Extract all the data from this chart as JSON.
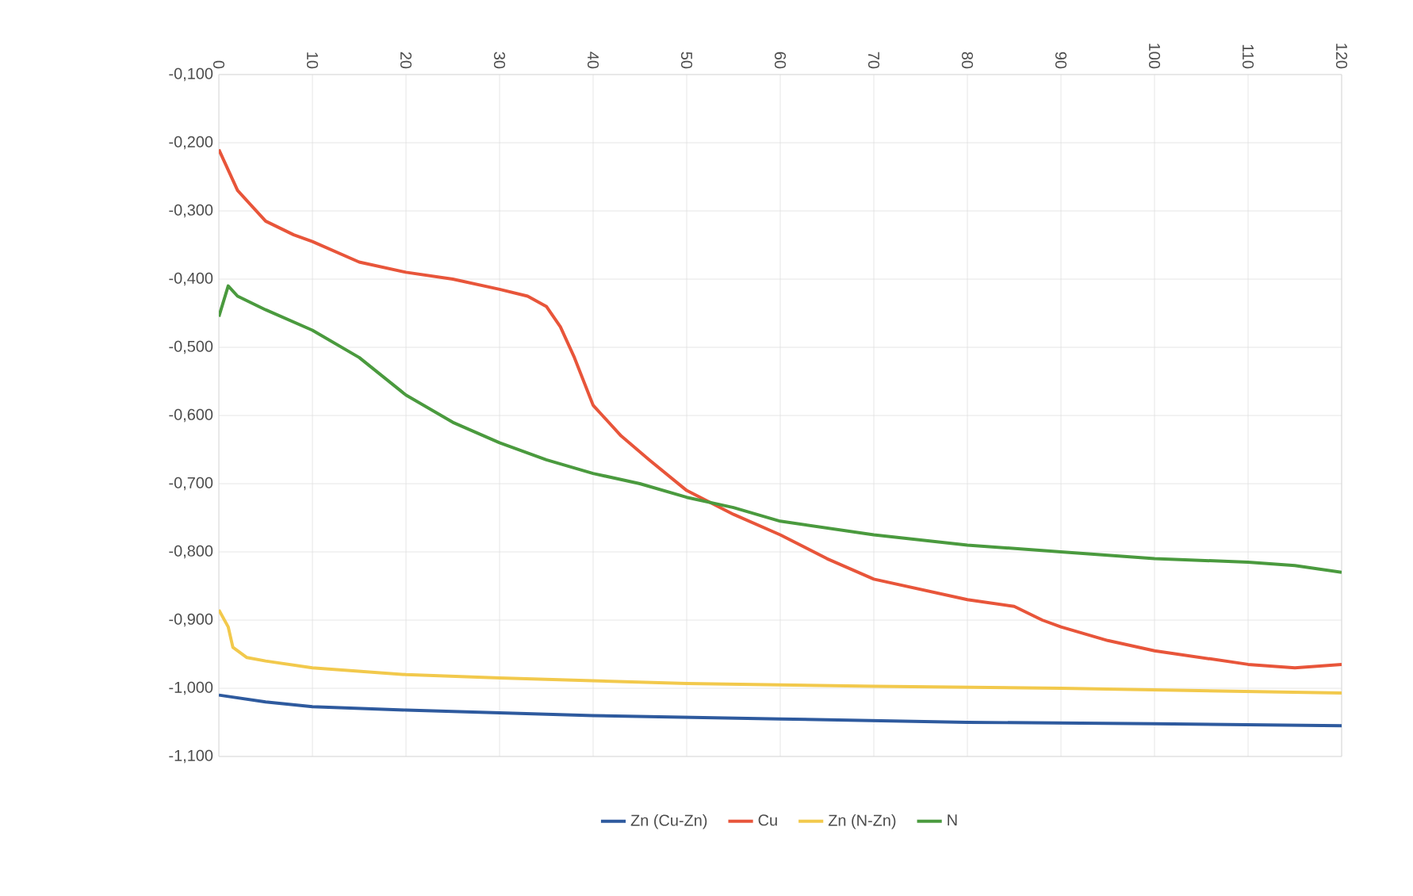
{
  "chart_data": {
    "type": "line",
    "grid": true,
    "legend": "bottom",
    "line_style": "solid",
    "marker": "none",
    "xlim": [
      0,
      120
    ],
    "xticks": [
      0,
      10,
      20,
      30,
      40,
      50,
      60,
      70,
      80,
      90,
      100,
      110,
      120
    ],
    "ylim": [
      -1.1,
      -0.1
    ],
    "yticks": [
      {
        "value": -0.1,
        "label": "-0,100"
      },
      {
        "value": -0.2,
        "label": "-0,200"
      },
      {
        "value": -0.3,
        "label": "-0,300"
      },
      {
        "value": -0.4,
        "label": "-0,400"
      },
      {
        "value": -0.5,
        "label": "-0,500"
      },
      {
        "value": -0.6,
        "label": "-0,600"
      },
      {
        "value": -0.7,
        "label": "-0,700"
      },
      {
        "value": -0.8,
        "label": "-0,800"
      },
      {
        "value": -0.9,
        "label": "-0,900"
      },
      {
        "value": -1.0,
        "label": "-1,000"
      },
      {
        "value": -1.1,
        "label": "-1,100"
      }
    ],
    "series": [
      {
        "name": "Zn (Cu-Zn)",
        "color": "#2e5a9e",
        "x": [
          0,
          5,
          10,
          20,
          40,
          60,
          80,
          100,
          120
        ],
        "values": [
          -1.01,
          -1.02,
          -1.027,
          -1.032,
          -1.04,
          -1.045,
          -1.05,
          -1.052,
          -1.055
        ]
      },
      {
        "name": "Cu",
        "color": "#e8553a",
        "x": [
          0,
          2,
          5,
          8,
          10,
          15,
          20,
          25,
          30,
          33,
          35,
          36.5,
          38,
          40,
          43,
          46,
          50,
          55,
          60,
          65,
          70,
          75,
          80,
          85,
          88,
          90,
          95,
          100,
          105,
          110,
          115,
          120
        ],
        "values": [
          -0.21,
          -0.27,
          -0.315,
          -0.335,
          -0.345,
          -0.375,
          -0.39,
          -0.4,
          -0.415,
          -0.425,
          -0.44,
          -0.47,
          -0.515,
          -0.585,
          -0.63,
          -0.665,
          -0.71,
          -0.745,
          -0.775,
          -0.81,
          -0.84,
          -0.855,
          -0.87,
          -0.88,
          -0.9,
          -0.91,
          -0.93,
          -0.945,
          -0.955,
          -0.965,
          -0.97,
          -0.965
        ]
      },
      {
        "name": "Zn (N-Zn)",
        "color": "#f2c94c",
        "x": [
          0,
          1,
          1.5,
          3,
          5,
          10,
          20,
          30,
          50,
          70,
          90,
          120
        ],
        "values": [
          -0.885,
          -0.91,
          -0.94,
          -0.955,
          -0.96,
          -0.97,
          -0.98,
          -0.985,
          -0.993,
          -0.997,
          -1.0,
          -1.007
        ]
      },
      {
        "name": "N",
        "color": "#4a9a3e",
        "x": [
          0,
          1,
          2,
          5,
          10,
          15,
          20,
          25,
          30,
          35,
          40,
          45,
          50,
          55,
          60,
          70,
          80,
          90,
          100,
          110,
          115,
          120
        ],
        "values": [
          -0.455,
          -0.41,
          -0.425,
          -0.445,
          -0.475,
          -0.515,
          -0.57,
          -0.61,
          -0.64,
          -0.665,
          -0.685,
          -0.7,
          -0.72,
          -0.735,
          -0.755,
          -0.775,
          -0.79,
          -0.8,
          -0.81,
          -0.815,
          -0.82,
          -0.83
        ]
      }
    ]
  }
}
